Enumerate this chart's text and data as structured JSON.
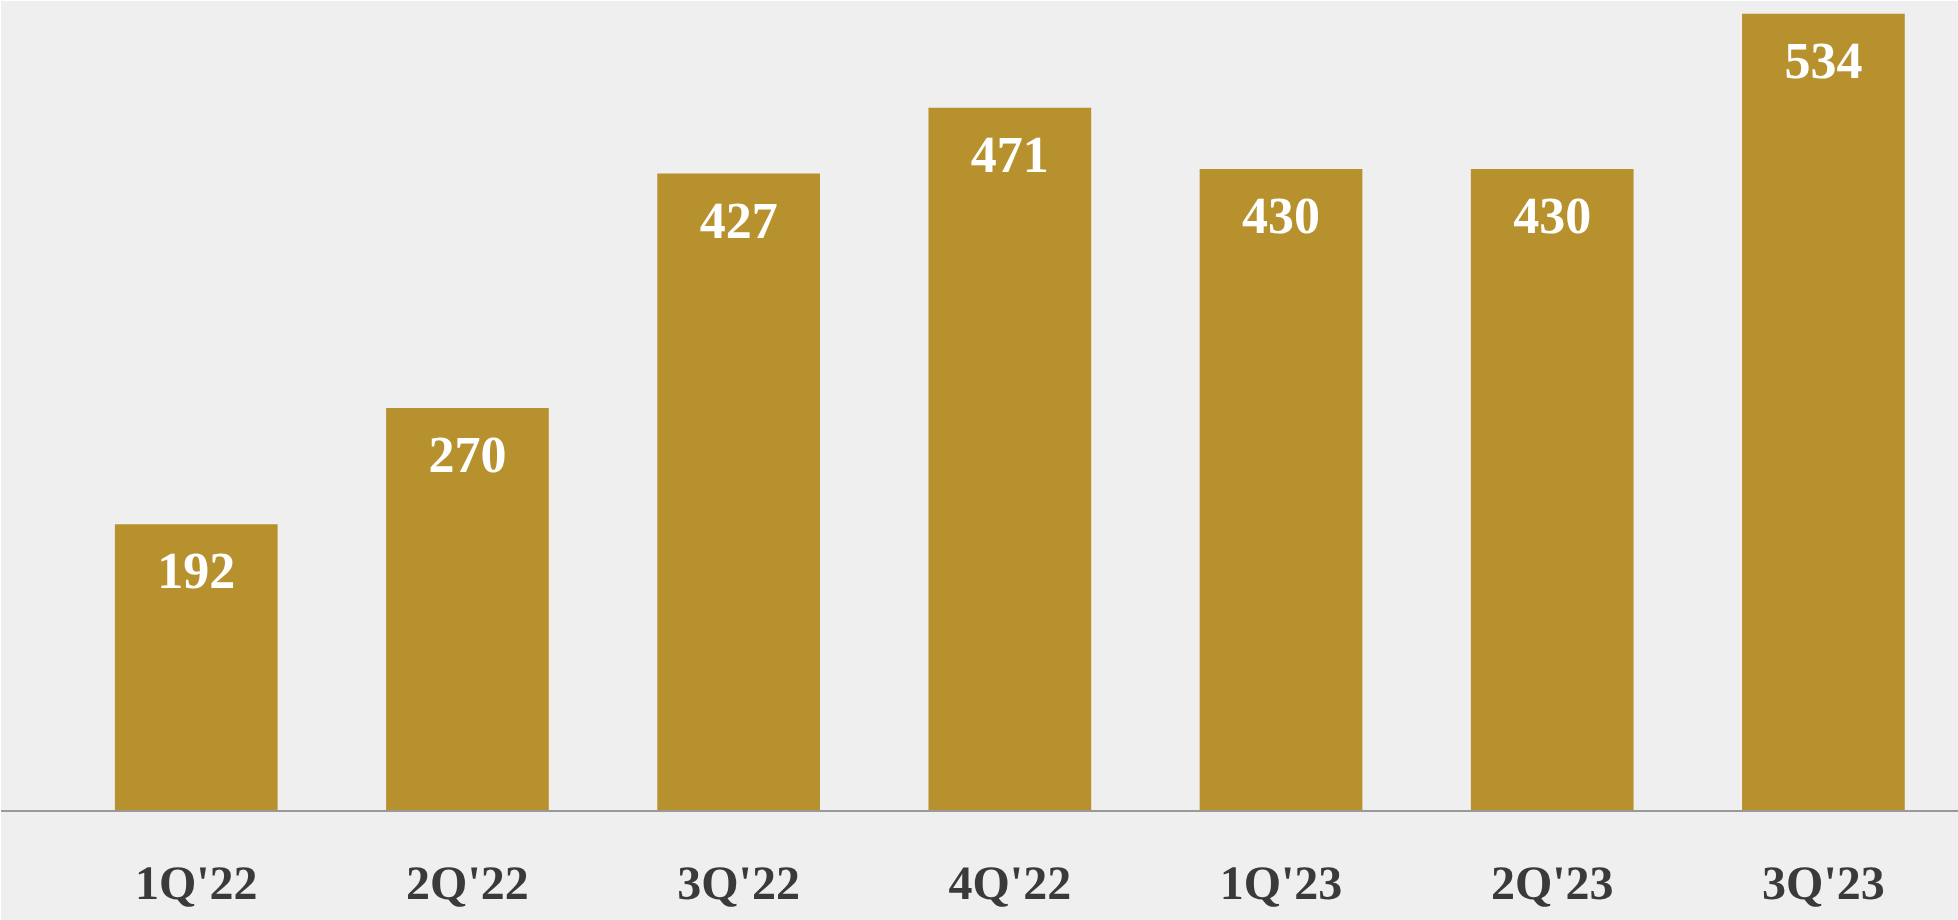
{
  "chart_data": {
    "type": "bar",
    "categories": [
      "1Q'22",
      "2Q'22",
      "3Q'22",
      "4Q'22",
      "1Q'23",
      "2Q'23",
      "3Q'23"
    ],
    "values": [
      192,
      270,
      427,
      471,
      430,
      430,
      534
    ],
    "color": "#b8912f",
    "data_labels": true,
    "grid": false
  }
}
